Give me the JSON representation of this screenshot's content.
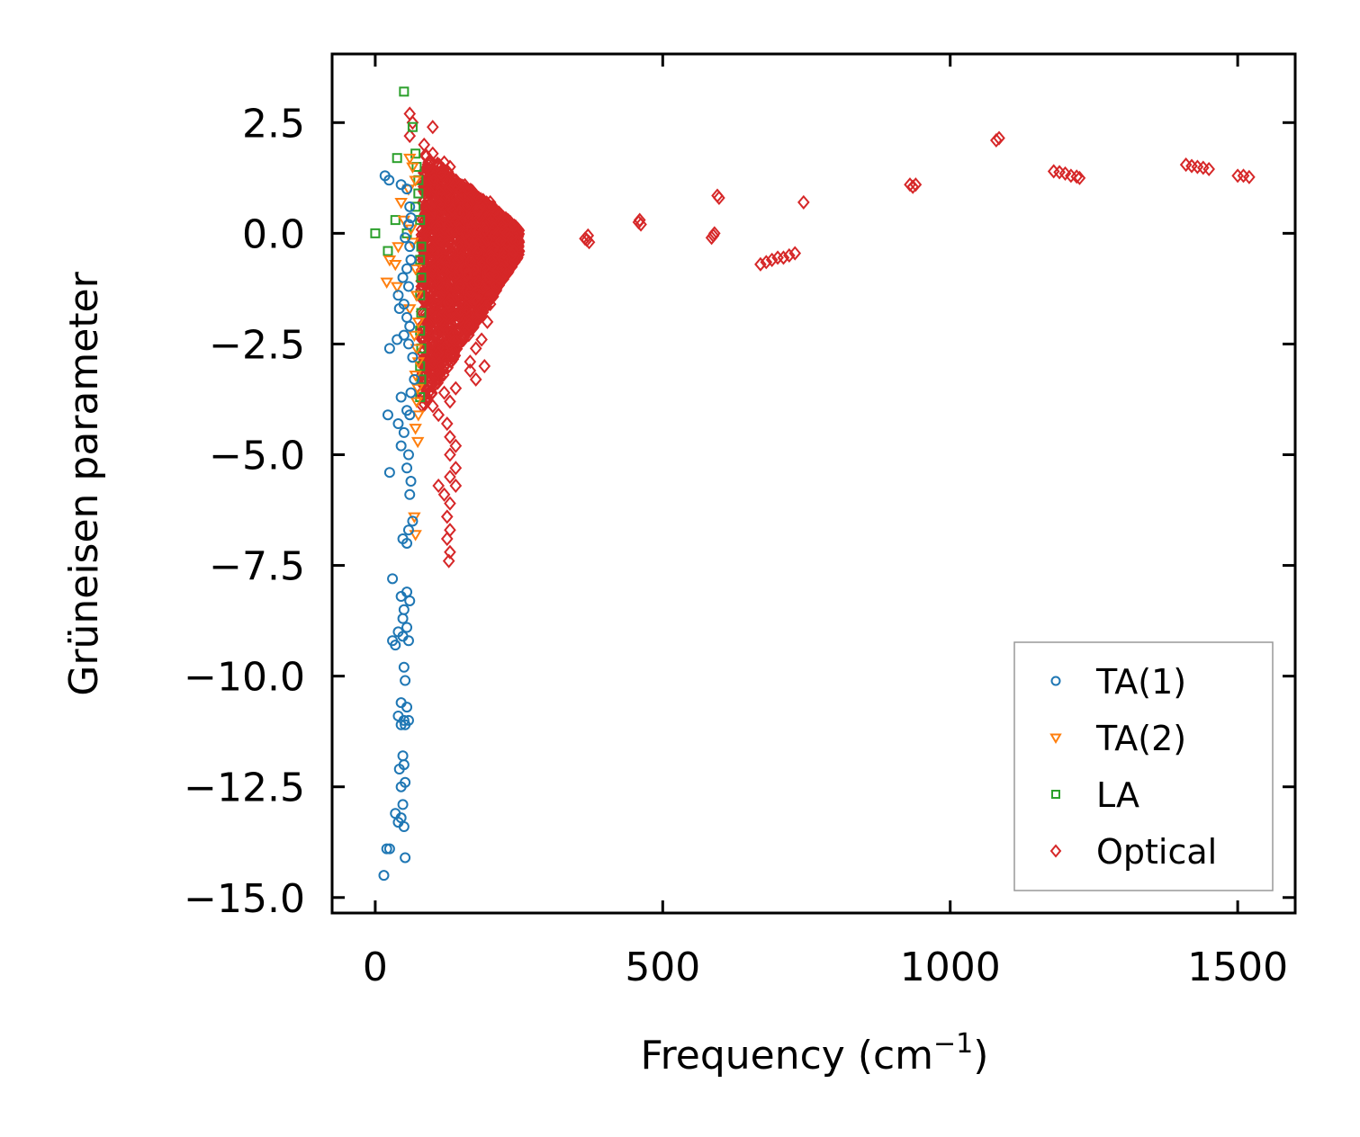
{
  "chart_data": {
    "type": "scatter",
    "title": "",
    "xlabel": "Frequency (cm",
    "xlabel_sup": "−1",
    "xlabel_close": ")",
    "ylabel": "Grüneisen parameter",
    "xlim": [
      -75,
      1600
    ],
    "ylim": [
      -15.35,
      4.05
    ],
    "xticks": [
      0,
      500,
      1000,
      1500
    ],
    "xtick_labels": [
      "0",
      "500",
      "1000",
      "1500"
    ],
    "yticks": [
      2.5,
      0.0,
      -2.5,
      -5.0,
      -7.5,
      -10.0,
      -12.5,
      -15.0
    ],
    "ytick_labels": [
      "2.5",
      "0.0",
      "−2.5",
      "−5.0",
      "−7.5",
      "−10.0",
      "−12.5",
      "−15.0"
    ],
    "grid": false,
    "legend_position": "lower-right",
    "series": [
      {
        "name": "TA(1)",
        "marker": "circle",
        "color": "#1f77b4",
        "points": [
          [
            17,
            1.3
          ],
          [
            24,
            1.2
          ],
          [
            45,
            1.1
          ],
          [
            55,
            1.0
          ],
          [
            60,
            0.6
          ],
          [
            62,
            0.35
          ],
          [
            58,
            0.2
          ],
          [
            52,
            -0.1
          ],
          [
            60,
            -0.3
          ],
          [
            62,
            -0.6
          ],
          [
            55,
            -0.8
          ],
          [
            48,
            -1.0
          ],
          [
            58,
            -1.2
          ],
          [
            40,
            -1.4
          ],
          [
            50,
            -1.6
          ],
          [
            42,
            -1.7
          ],
          [
            55,
            -1.9
          ],
          [
            60,
            -2.1
          ],
          [
            50,
            -2.3
          ],
          [
            38,
            -2.4
          ],
          [
            25,
            -2.6
          ],
          [
            58,
            -2.5
          ],
          [
            65,
            -2.8
          ],
          [
            68,
            -3.3
          ],
          [
            62,
            -3.6
          ],
          [
            45,
            -3.7
          ],
          [
            55,
            -4.0
          ],
          [
            22,
            -4.1
          ],
          [
            60,
            -4.1
          ],
          [
            40,
            -4.3
          ],
          [
            50,
            -4.5
          ],
          [
            45,
            -4.8
          ],
          [
            58,
            -5.0
          ],
          [
            55,
            -5.3
          ],
          [
            25,
            -5.4
          ],
          [
            62,
            -5.6
          ],
          [
            60,
            -5.9
          ],
          [
            65,
            -6.5
          ],
          [
            58,
            -6.7
          ],
          [
            48,
            -6.9
          ],
          [
            55,
            -7.0
          ],
          [
            30,
            -7.8
          ],
          [
            55,
            -8.1
          ],
          [
            45,
            -8.2
          ],
          [
            60,
            -8.3
          ],
          [
            50,
            -8.5
          ],
          [
            48,
            -8.7
          ],
          [
            55,
            -8.9
          ],
          [
            40,
            -9.0
          ],
          [
            48,
            -9.1
          ],
          [
            30,
            -9.2
          ],
          [
            58,
            -9.2
          ],
          [
            35,
            -9.3
          ],
          [
            50,
            -9.8
          ],
          [
            52,
            -10.1
          ],
          [
            45,
            -10.6
          ],
          [
            55,
            -10.7
          ],
          [
            40,
            -10.9
          ],
          [
            50,
            -11.0
          ],
          [
            58,
            -11.0
          ],
          [
            45,
            -11.1
          ],
          [
            52,
            -11.1
          ],
          [
            48,
            -11.8
          ],
          [
            50,
            -12.0
          ],
          [
            42,
            -12.1
          ],
          [
            45,
            -12.5
          ],
          [
            52,
            -12.4
          ],
          [
            48,
            -12.9
          ],
          [
            35,
            -13.1
          ],
          [
            45,
            -13.2
          ],
          [
            40,
            -13.3
          ],
          [
            50,
            -13.4
          ],
          [
            20,
            -13.9
          ],
          [
            25,
            -13.9
          ],
          [
            52,
            -14.1
          ],
          [
            15,
            -14.5
          ]
        ]
      },
      {
        "name": "TA(2)",
        "marker": "triangle-down",
        "color": "#ff7f0e",
        "points": [
          [
            60,
            1.7
          ],
          [
            65,
            1.5
          ],
          [
            70,
            1.2
          ],
          [
            58,
            1.0
          ],
          [
            45,
            0.7
          ],
          [
            50,
            0.3
          ],
          [
            62,
            0.1
          ],
          [
            65,
            -0.2
          ],
          [
            40,
            -0.3
          ],
          [
            25,
            -0.6
          ],
          [
            35,
            -0.7
          ],
          [
            70,
            -0.8
          ],
          [
            20,
            -1.1
          ],
          [
            38,
            -1.2
          ],
          [
            72,
            -1.4
          ],
          [
            60,
            -1.7
          ],
          [
            75,
            -2.0
          ],
          [
            68,
            -2.3
          ],
          [
            72,
            -2.6
          ],
          [
            75,
            -2.9
          ],
          [
            70,
            -3.2
          ],
          [
            74,
            -3.5
          ],
          [
            72,
            -3.8
          ],
          [
            75,
            -4.1
          ],
          [
            70,
            -4.4
          ],
          [
            74,
            -4.7
          ],
          [
            68,
            -6.4
          ],
          [
            70,
            -6.8
          ]
        ]
      },
      {
        "name": "LA",
        "marker": "square",
        "color": "#2ca02c",
        "points": [
          [
            50,
            3.2
          ],
          [
            65,
            2.4
          ],
          [
            38,
            1.7
          ],
          [
            70,
            1.8
          ],
          [
            72,
            1.5
          ],
          [
            75,
            1.2
          ],
          [
            75,
            0.9
          ],
          [
            70,
            0.6
          ],
          [
            35,
            0.3
          ],
          [
            78,
            0.3
          ],
          [
            0,
            0.0
          ],
          [
            55,
            0.0
          ],
          [
            22,
            -0.4
          ],
          [
            80,
            -0.3
          ],
          [
            78,
            -0.6
          ],
          [
            80,
            -1.0
          ],
          [
            78,
            -1.4
          ],
          [
            80,
            -1.8
          ],
          [
            78,
            -2.2
          ],
          [
            80,
            -2.6
          ],
          [
            78,
            -3.0
          ],
          [
            80,
            -3.3
          ],
          [
            78,
            -3.7
          ]
        ]
      },
      {
        "name": "Optical",
        "marker": "diamond",
        "color": "#d62728",
        "cluster": {
          "x_range": [
            80,
            250
          ],
          "y_top": 1.9,
          "y_bottom": -4.0
        },
        "points": [
          [
            60,
            2.7
          ],
          [
            65,
            2.5
          ],
          [
            60,
            2.2
          ],
          [
            100,
            2.4
          ],
          [
            85,
            2.0
          ],
          [
            100,
            1.8
          ],
          [
            120,
            1.6
          ],
          [
            130,
            1.5
          ],
          [
            160,
            1.0
          ],
          [
            180,
            0.8
          ],
          [
            200,
            0.7
          ],
          [
            205,
            0.6
          ],
          [
            230,
            0.3
          ],
          [
            250,
            -0.2
          ],
          [
            240,
            -0.4
          ],
          [
            220,
            -0.8
          ],
          [
            210,
            -1.2
          ],
          [
            200,
            -1.6
          ],
          [
            195,
            -2.0
          ],
          [
            185,
            -2.4
          ],
          [
            175,
            -2.6
          ],
          [
            165,
            -2.9
          ],
          [
            190,
            -3.0
          ],
          [
            165,
            -3.1
          ],
          [
            175,
            -3.3
          ],
          [
            140,
            -3.5
          ],
          [
            120,
            -3.6
          ],
          [
            130,
            -3.8
          ],
          [
            100,
            -3.9
          ],
          [
            110,
            -4.1
          ],
          [
            125,
            -4.3
          ],
          [
            130,
            -4.6
          ],
          [
            140,
            -4.8
          ],
          [
            130,
            -5.0
          ],
          [
            140,
            -5.3
          ],
          [
            130,
            -5.5
          ],
          [
            110,
            -5.7
          ],
          [
            140,
            -5.7
          ],
          [
            120,
            -5.9
          ],
          [
            130,
            -6.1
          ],
          [
            125,
            -6.4
          ],
          [
            130,
            -6.7
          ],
          [
            125,
            -6.9
          ],
          [
            130,
            -7.2
          ],
          [
            128,
            -7.4
          ],
          [
            370,
            -0.05
          ],
          [
            365,
            -0.12
          ],
          [
            372,
            -0.2
          ],
          [
            368,
            -0.15
          ],
          [
            460,
            0.3
          ],
          [
            462,
            0.2
          ],
          [
            458,
            0.25
          ],
          [
            595,
            0.85
          ],
          [
            598,
            0.8
          ],
          [
            590,
            0.0
          ],
          [
            588,
            -0.05
          ],
          [
            585,
            -0.1
          ],
          [
            670,
            -0.7
          ],
          [
            680,
            -0.65
          ],
          [
            690,
            -0.6
          ],
          [
            700,
            -0.55
          ],
          [
            710,
            -0.55
          ],
          [
            720,
            -0.5
          ],
          [
            730,
            -0.45
          ],
          [
            745,
            0.7
          ],
          [
            930,
            1.1
          ],
          [
            935,
            1.05
          ],
          [
            940,
            1.1
          ],
          [
            1080,
            2.1
          ],
          [
            1085,
            2.15
          ],
          [
            1180,
            1.4
          ],
          [
            1190,
            1.38
          ],
          [
            1200,
            1.35
          ],
          [
            1210,
            1.3
          ],
          [
            1220,
            1.28
          ],
          [
            1225,
            1.25
          ],
          [
            1410,
            1.55
          ],
          [
            1420,
            1.52
          ],
          [
            1430,
            1.5
          ],
          [
            1440,
            1.48
          ],
          [
            1450,
            1.45
          ],
          [
            1500,
            1.3
          ],
          [
            1510,
            1.3
          ],
          [
            1520,
            1.27
          ]
        ]
      }
    ]
  }
}
